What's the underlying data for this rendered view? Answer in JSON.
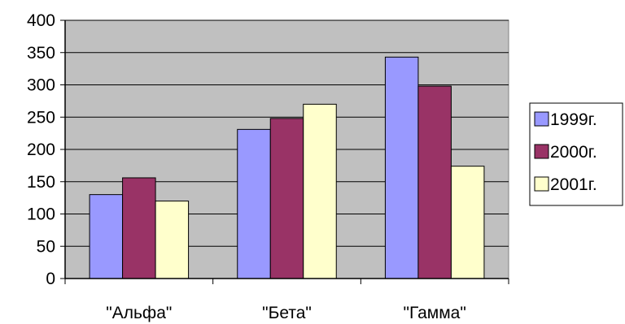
{
  "chart_data": {
    "type": "bar",
    "categories": [
      "\"Альфа\"",
      "\"Бета\"",
      "\"Гамма\""
    ],
    "series": [
      {
        "name": "1999г.",
        "color": "#9999ff",
        "values": [
          130,
          231,
          343
        ]
      },
      {
        "name": "2000г.",
        "color": "#993366",
        "values": [
          156,
          248,
          298
        ]
      },
      {
        "name": "2001г.",
        "color": "#ffffcc",
        "values": [
          120,
          270,
          174
        ]
      }
    ],
    "yticks": [
      "0",
      "50",
      "100",
      "150",
      "200",
      "250",
      "300",
      "350",
      "400"
    ],
    "ylim": [
      0,
      400
    ],
    "grid": true,
    "plot_background": "#c0c0c0",
    "legend_position": "right"
  }
}
